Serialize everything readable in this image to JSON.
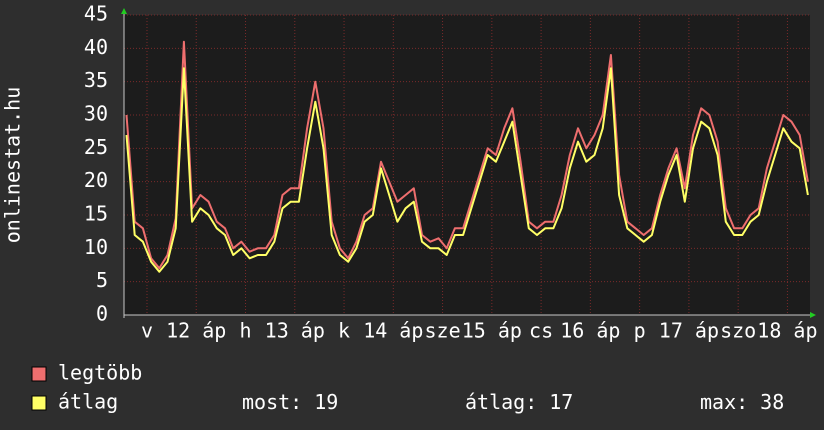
{
  "chart_data": {
    "type": "line",
    "y_label": "onlinestat.hu",
    "x": [
      -5,
      -3,
      -1,
      1,
      3,
      5,
      7,
      9,
      11,
      13,
      15,
      17,
      19,
      21,
      23,
      25,
      27,
      29,
      31,
      33,
      35,
      37,
      39,
      41,
      43,
      45,
      47,
      49,
      51,
      53,
      55,
      57,
      59,
      61,
      63,
      65,
      67,
      69,
      71,
      73,
      75,
      77,
      79,
      81,
      83,
      85,
      87,
      89,
      91,
      93,
      95,
      97,
      99,
      101,
      103,
      105,
      107,
      109,
      111,
      113,
      115,
      117,
      119,
      121,
      123,
      125,
      127,
      129,
      131,
      133,
      135,
      137,
      139,
      141,
      143,
      145,
      147,
      149,
      151,
      153,
      155,
      157,
      159,
      161
    ],
    "xlim": [
      -5.6,
      161.5
    ],
    "xticks": [
      {
        "value": 0,
        "label": "v"
      },
      {
        "value": 12,
        "label": "12 áp"
      },
      {
        "value": 24,
        "label": "h"
      },
      {
        "value": 36,
        "label": "13 áp"
      },
      {
        "value": 48,
        "label": "k"
      },
      {
        "value": 60,
        "label": "14 áp"
      },
      {
        "value": 72,
        "label": "sze"
      },
      {
        "value": 84,
        "label": "15 áp"
      },
      {
        "value": 96,
        "label": "cs"
      },
      {
        "value": 108,
        "label": "16 áp"
      },
      {
        "value": 120,
        "label": "p"
      },
      {
        "value": 132,
        "label": "17 áp"
      },
      {
        "value": 144,
        "label": "szo"
      },
      {
        "value": 156,
        "label": "18 áp"
      }
    ],
    "ylim": [
      0,
      45
    ],
    "yticks": [
      0,
      5,
      10,
      15,
      20,
      25,
      30,
      35,
      40,
      45
    ],
    "grid": true,
    "series": [
      {
        "name": "legtöbb",
        "color": "#ee6e6e",
        "values": [
          30,
          14,
          13,
          8.5,
          7,
          9,
          14.5,
          41,
          16,
          18,
          17,
          14,
          13,
          10,
          11,
          9.5,
          10,
          10,
          12,
          18,
          19,
          19,
          28,
          35,
          28,
          14,
          10,
          8.5,
          11,
          15,
          16,
          23,
          20,
          17,
          18,
          19,
          12,
          11,
          11.5,
          10,
          13,
          13,
          17,
          21,
          25,
          24,
          28,
          31,
          23,
          14,
          13,
          14,
          14,
          18,
          24,
          28,
          25,
          27,
          30,
          39,
          21,
          14,
          13,
          12,
          13,
          18,
          22,
          25,
          19,
          27,
          31,
          30,
          26,
          16,
          13,
          13,
          15,
          16,
          22,
          26,
          30,
          29,
          27,
          20
        ]
      },
      {
        "name": "átlag",
        "color": "#ffff66",
        "values": [
          27,
          12,
          11,
          8,
          6.5,
          8,
          13,
          37,
          14,
          16,
          15,
          13,
          12,
          9,
          10,
          8.5,
          9,
          9,
          11,
          16,
          17,
          17,
          25,
          32,
          25,
          12,
          9,
          8,
          10,
          14,
          15,
          22,
          18,
          14,
          16,
          17,
          11,
          10,
          10,
          9,
          12,
          12,
          16,
          20,
          24,
          23,
          26,
          29,
          21,
          13,
          12,
          13,
          13,
          16,
          22,
          26,
          23,
          24,
          28,
          37,
          18,
          13,
          12,
          11,
          12,
          17,
          21,
          24,
          17,
          25,
          29,
          28,
          24,
          14,
          12,
          12,
          14,
          15,
          20,
          24,
          28,
          26,
          25,
          18
        ]
      }
    ],
    "stats": [
      {
        "label": "most:",
        "value": 19
      },
      {
        "label": "átlag:",
        "value": 17
      },
      {
        "label": "max:",
        "value": 38
      }
    ]
  }
}
